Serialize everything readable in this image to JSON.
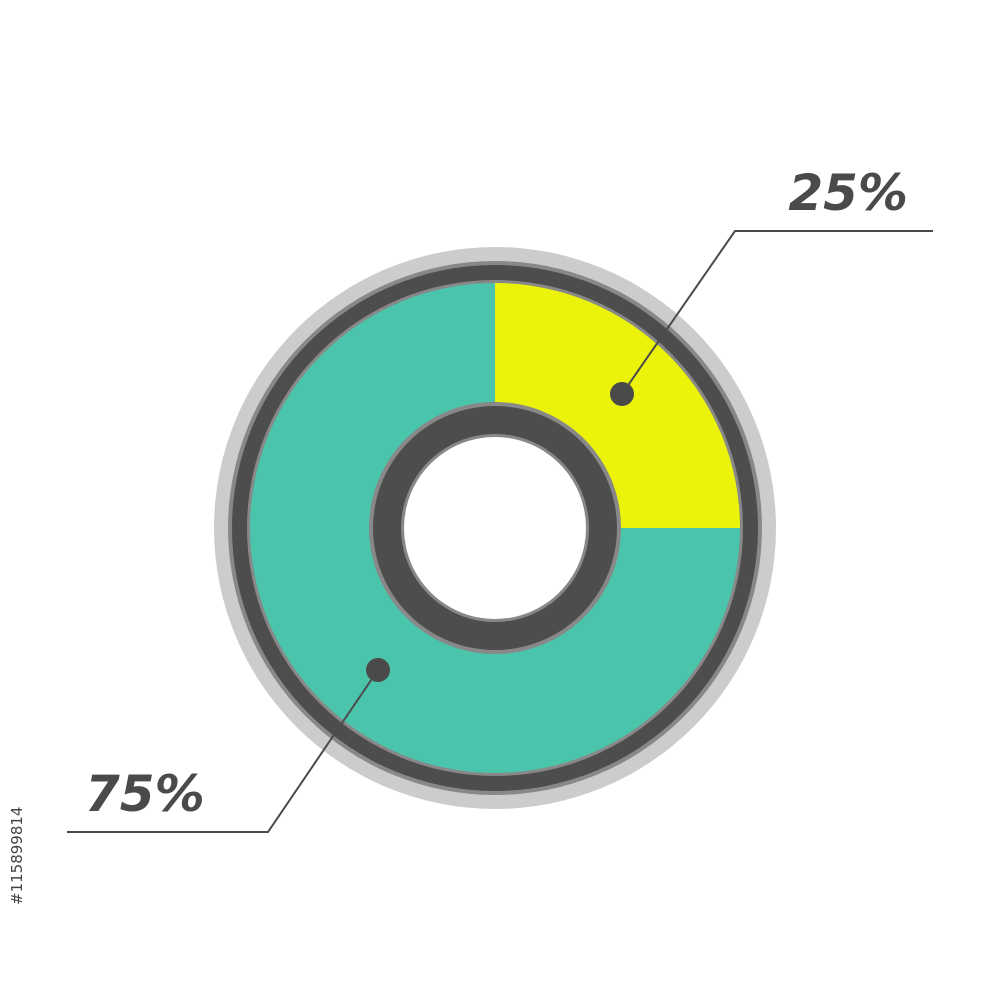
{
  "chart_data": {
    "type": "pie",
    "variant": "donut",
    "slices": [
      {
        "label": "25%",
        "value": 25,
        "color": "#ebf30a"
      },
      {
        "label": "75%",
        "value": 75,
        "color": "#4bc4ac"
      }
    ],
    "start_angle": "12 o'clock, clockwise",
    "colors": {
      "ring": "#4d4d4d",
      "ring_edge": "#888888",
      "halo": "#cccccc",
      "text": "#4a4a4a"
    }
  },
  "stock_id": "#115899814"
}
